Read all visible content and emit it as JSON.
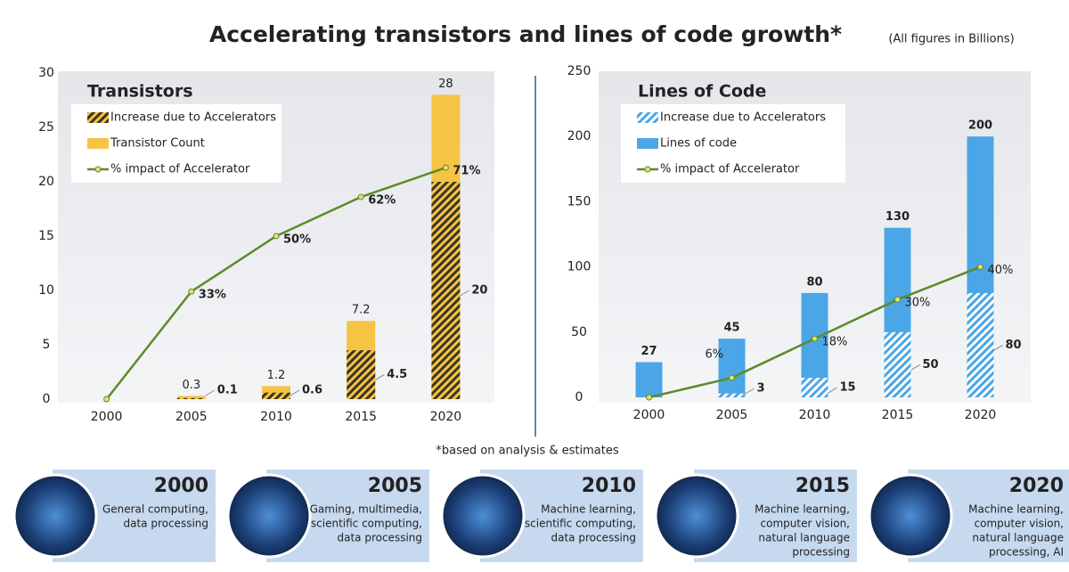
{
  "title": "Accelerating transistors and lines of code growth*",
  "note": "(All figures in Billions)",
  "footnote": "*based on analysis & estimates",
  "panels": [
    {
      "year": "2000",
      "lines": [
        "General computing,",
        "data processing"
      ]
    },
    {
      "year": "2005",
      "lines": [
        "Gaming, multimedia,",
        "scientific computing,",
        "data processing"
      ]
    },
    {
      "year": "2010",
      "lines": [
        "Machine learning,",
        "scientific computing,",
        "data processing"
      ]
    },
    {
      "year": "2015",
      "lines": [
        "Machine learning,",
        "computer vision,",
        "natural language",
        "processing"
      ]
    },
    {
      "year": "2020",
      "lines": [
        "Machine learning,",
        "computer vision,",
        "natural language",
        "processing, AI"
      ]
    }
  ],
  "chart_data": [
    {
      "type": "bar",
      "title": "Transistors",
      "categories": [
        "2000",
        "2005",
        "2010",
        "2015",
        "2020"
      ],
      "series": [
        {
          "name": "Increase due to Accelerators",
          "color": "#3b3524",
          "values": [
            null,
            0.1,
            0.6,
            4.5,
            20
          ]
        },
        {
          "name": "Transistor Count",
          "color": "#f6c445",
          "values": [
            null,
            0.3,
            1.2,
            7.2,
            28
          ]
        },
        {
          "name": "% impact of Accelerator",
          "type": "line",
          "axis": "y2",
          "color": "#5b8c2a",
          "values": [
            0,
            33,
            50,
            62,
            71
          ],
          "value_labels": [
            null,
            "33%",
            "50%",
            "62%",
            "71%"
          ]
        }
      ],
      "ylim": [
        0,
        30
      ],
      "yticks": [
        0,
        5,
        10,
        15,
        20,
        25,
        30
      ],
      "y2lim": [
        0,
        100
      ],
      "grid": false
    },
    {
      "type": "bar",
      "title": "Lines of Code",
      "categories": [
        "2000",
        "2005",
        "2010",
        "2015",
        "2020"
      ],
      "series": [
        {
          "name": "Increase due to Accelerators",
          "color": "#ffffff",
          "values": [
            null,
            3,
            15,
            50,
            80
          ]
        },
        {
          "name": "Lines of code",
          "color": "#4aa6e6",
          "values": [
            27,
            45,
            80,
            130,
            200
          ]
        },
        {
          "name": "% impact of Accelerator",
          "type": "line",
          "axis": "y2",
          "color": "#5b8c2a",
          "values": [
            0,
            6,
            18,
            30,
            40
          ],
          "value_labels": [
            null,
            "6%",
            "18%",
            "30%",
            "40%"
          ]
        }
      ],
      "ylim": [
        0,
        250
      ],
      "yticks": [
        0,
        50,
        100,
        150,
        200,
        250
      ],
      "y2lim": [
        0,
        100
      ],
      "grid": false
    }
  ]
}
